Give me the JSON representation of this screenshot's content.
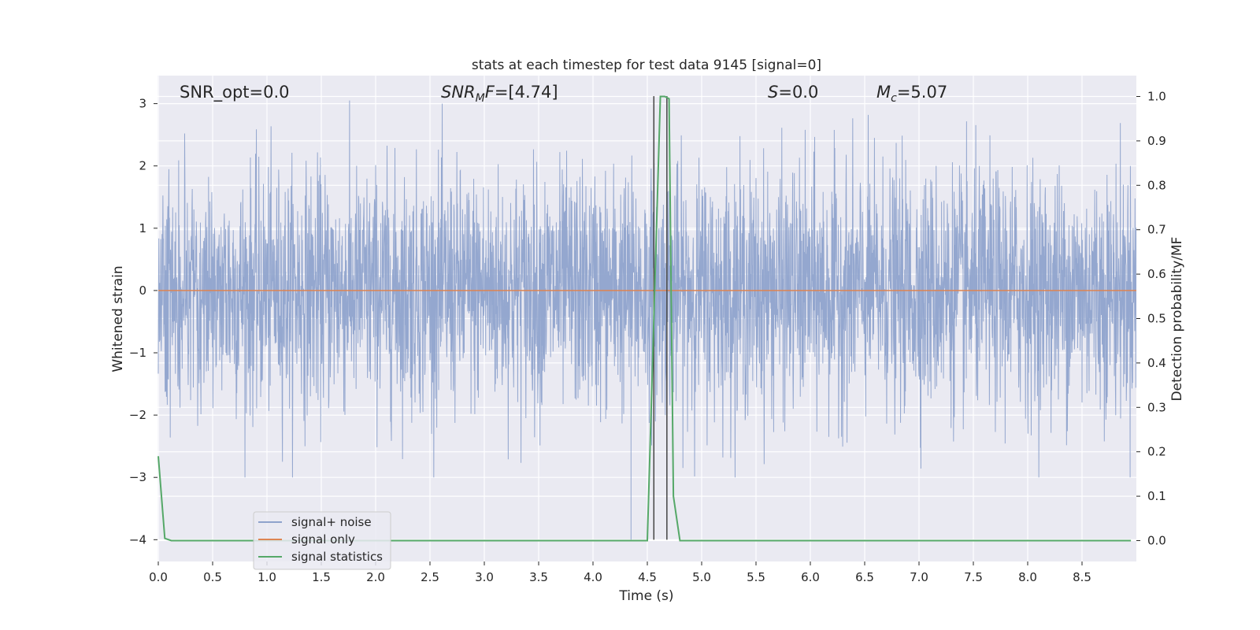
{
  "chart_data": {
    "type": "line",
    "title": "stats at each timestep for test data 9145 [signal=0]",
    "xlabel": "Time (s)",
    "ylabel": "Whitened strain",
    "ylabel_right": "Detection probability/MF",
    "xlim": [
      0.0,
      9.0
    ],
    "ylim": [
      -4.35,
      3.45
    ],
    "ylim_right": [
      -0.047,
      1.047
    ],
    "x_ticks": [
      "0.0",
      "0.5",
      "1.0",
      "1.5",
      "2.0",
      "2.5",
      "3.0",
      "3.5",
      "4.0",
      "4.5",
      "5.0",
      "5.5",
      "6.0",
      "6.5",
      "7.0",
      "7.5",
      "8.0",
      "8.5"
    ],
    "y_ticks": [
      "3",
      "2",
      "1",
      "0",
      "−1",
      "−2",
      "−3",
      "−4"
    ],
    "y_ticks_right": [
      "1.0",
      "0.9",
      "0.8",
      "0.7",
      "0.6",
      "0.5",
      "0.4",
      "0.3",
      "0.2",
      "0.1",
      "0.0"
    ],
    "grid": true,
    "legend_position": "lower-left",
    "annotations": {
      "snr_opt": "SNR_opt=0.0",
      "snr_mf": "=[4.74]",
      "s_value": "=0.0",
      "mc_value": "=5.07"
    },
    "series": [
      {
        "name": "signal+ noise",
        "color": "#8fa3cc",
        "description_values": "dense whitened-strain noise trace spanning roughly -3 to 3"
      },
      {
        "name": "signal only",
        "color": "#dd8452",
        "x": [
          0.0,
          9.0
        ],
        "values": [
          0.0,
          0.0
        ]
      },
      {
        "name": "signal statistics",
        "color": "#55a868",
        "axis": "right",
        "x": [
          0.0,
          0.06,
          0.12,
          0.5,
          1.0,
          2.0,
          3.0,
          4.0,
          4.5,
          4.62,
          4.66,
          4.7,
          4.74,
          4.8,
          5.0,
          6.0,
          7.0,
          8.0,
          8.95
        ],
        "values": [
          0.19,
          0.005,
          0.0,
          0.0,
          0.0,
          0.0,
          0.0,
          0.0,
          0.0,
          1.0,
          1.0,
          0.995,
          0.1,
          0.0,
          0.0,
          0.0,
          0.0,
          0.0,
          0.0
        ]
      }
    ],
    "vertical_lines": [
      4.56,
      4.68
    ],
    "colors": {
      "background": "#eaeaf2",
      "grid": "#ffffff",
      "vline": "#444444"
    }
  }
}
